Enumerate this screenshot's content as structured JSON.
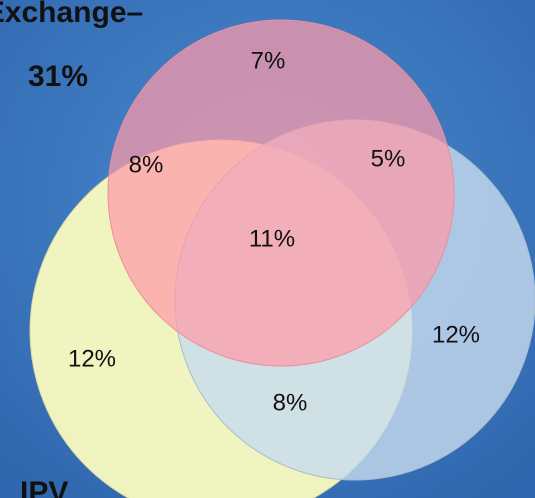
{
  "header": {
    "title": "Exchange–",
    "value": "31%"
  },
  "regions": [
    {
      "label": "7%"
    },
    {
      "label": "8%"
    },
    {
      "label": "5%"
    },
    {
      "label": "11%"
    },
    {
      "label": "12%"
    },
    {
      "label": "12%"
    },
    {
      "label": "8%"
    }
  ],
  "footer": {
    "title": "IPV"
  }
}
